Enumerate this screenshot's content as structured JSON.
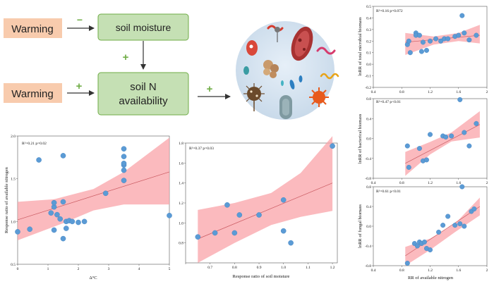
{
  "diagram": {
    "warming_top": "Warming",
    "warming_bottom": "Warming",
    "soil_moisture": "soil moisture",
    "soil_n_line1": "soil N",
    "soil_n_line2": "availability",
    "sign_negative": "−",
    "sign_positive": "+",
    "colors": {
      "warming_box": "#f8cbad",
      "green_box": "#c5e0b4",
      "green_border": "#70ad47",
      "arrow": "#333333",
      "plus": "#70ad47"
    }
  },
  "chart_data": [
    {
      "type": "scatter",
      "stat": "R²=0.21 p=0.02",
      "xlabel": "Δ°C",
      "ylabel": "Response ratio of available nitrogen",
      "xlim": [
        0,
        5
      ],
      "ylim": [
        0.5,
        2.0
      ],
      "xticks": [
        0,
        1,
        2,
        3,
        4,
        5
      ],
      "yticks": [
        0.5,
        1.0,
        1.5,
        2.0
      ],
      "x": [
        0.0,
        0.4,
        0.7,
        1.1,
        1.2,
        1.2,
        1.2,
        1.3,
        1.4,
        1.5,
        1.5,
        1.5,
        1.6,
        1.6,
        1.7,
        1.8,
        2.0,
        2.2,
        2.9,
        3.5,
        3.5,
        3.5,
        3.5,
        3.5,
        3.5,
        5.0
      ],
      "y": [
        0.88,
        0.91,
        1.72,
        1.1,
        1.17,
        1.22,
        0.9,
        1.08,
        1.03,
        1.23,
        0.8,
        1.77,
        0.92,
        1.0,
        1.01,
        1.0,
        0.99,
        1.0,
        1.33,
        1.48,
        1.6,
        1.66,
        1.68,
        1.76,
        1.85,
        1.07
      ],
      "fit": {
        "x0": 0,
        "y0": 1.02,
        "x1": 5,
        "y1": 1.58
      },
      "band": {
        "upper": [
          [
            0,
            1.23
          ],
          [
            1.2,
            1.26
          ],
          [
            2.5,
            1.38
          ],
          [
            3.5,
            1.58
          ],
          [
            5,
            1.98
          ]
        ],
        "lower": [
          [
            0,
            0.78
          ],
          [
            1.5,
            0.98
          ],
          [
            2.5,
            1.13
          ],
          [
            3.5,
            1.2
          ],
          [
            5,
            1.2
          ]
        ]
      }
    },
    {
      "type": "scatter",
      "stat": "R²=0.37 p=0.03",
      "xlabel": "Response ratio of soil moisture",
      "ylabel": "",
      "xlim": [
        0.6,
        1.22
      ],
      "ylim": [
        0.6,
        1.8
      ],
      "xticks": [
        0.6,
        0.7,
        0.8,
        0.9,
        1.0,
        1.1,
        1.2
      ],
      "xtick_labels": [
        "",
        "0.7",
        "0.8",
        "0.9",
        "1.0",
        "1.1",
        "1.2"
      ],
      "yticks": [
        0.8,
        1.0,
        1.2,
        1.4,
        1.6,
        1.8
      ],
      "x": [
        0.65,
        0.72,
        0.77,
        0.8,
        0.82,
        0.9,
        1.0,
        1.0,
        1.03,
        1.2
      ],
      "y": [
        0.86,
        0.9,
        1.18,
        0.9,
        1.08,
        1.08,
        1.23,
        0.92,
        0.8,
        1.77
      ],
      "fit": {
        "x0": 0.65,
        "y0": 0.84,
        "x1": 1.2,
        "y1": 1.4
      },
      "band": {
        "upper": [
          [
            0.65,
            1.13
          ],
          [
            0.8,
            1.2
          ],
          [
            0.95,
            1.3
          ],
          [
            1.07,
            1.5
          ],
          [
            1.2,
            1.87
          ]
        ],
        "lower": [
          [
            0.65,
            0.6
          ],
          [
            0.8,
            0.8
          ],
          [
            0.95,
            0.98
          ],
          [
            1.07,
            1.06
          ],
          [
            1.2,
            1.12
          ]
        ]
      }
    },
    {
      "type": "scatter",
      "stat": "R²=0.16 p=0.072",
      "xlabel": "",
      "ylabel": "lnRR of total microbial biomass",
      "xlim": [
        0.4,
        2.0
      ],
      "ylim": [
        -0.2,
        0.5
      ],
      "xticks": [
        0.4,
        0.8,
        1.2,
        1.6,
        2.0
      ],
      "yticks": [
        -0.2,
        -0.1,
        0.0,
        0.1,
        0.2,
        0.3,
        0.4,
        0.5
      ],
      "x": [
        0.88,
        0.9,
        0.92,
        1.0,
        1.0,
        1.05,
        1.08,
        1.1,
        1.15,
        1.2,
        1.28,
        1.35,
        1.4,
        1.45,
        1.55,
        1.6,
        1.65,
        1.68,
        1.75,
        1.85
      ],
      "y": [
        0.17,
        0.2,
        0.1,
        0.27,
        0.25,
        0.25,
        0.11,
        0.19,
        0.12,
        0.2,
        0.22,
        0.2,
        0.22,
        0.22,
        0.24,
        0.25,
        0.42,
        0.27,
        0.21,
        0.25
      ],
      "fit": {
        "x0": 0.85,
        "y0": 0.19,
        "x1": 1.9,
        "y1": 0.25
      },
      "band": {
        "upper": [
          [
            0.85,
            0.27
          ],
          [
            1.25,
            0.24
          ],
          [
            1.6,
            0.27
          ],
          [
            1.9,
            0.34
          ]
        ],
        "lower": [
          [
            0.85,
            0.08
          ],
          [
            1.25,
            0.17
          ],
          [
            1.6,
            0.2
          ],
          [
            1.9,
            0.18
          ]
        ]
      }
    },
    {
      "type": "scatter",
      "stat": "R²=0.47 p<0.01",
      "xlabel": "",
      "ylabel": "lnRR of bacterical biomass",
      "xlim": [
        0.4,
        2.0
      ],
      "ylim": [
        -0.8,
        0.8
      ],
      "xticks": [
        0.4,
        0.8,
        1.2,
        1.6,
        2.0
      ],
      "yticks": [
        -0.8,
        -0.4,
        0.0,
        0.4,
        0.8
      ],
      "x": [
        0.88,
        0.9,
        1.05,
        1.1,
        1.15,
        1.2,
        1.38,
        1.42,
        1.5,
        1.62,
        1.68,
        1.75,
        1.85
      ],
      "y": [
        -0.15,
        -0.58,
        -0.2,
        -0.45,
        -0.43,
        0.08,
        0.05,
        0.03,
        0.05,
        0.78,
        0.12,
        -0.15,
        0.3
      ],
      "fit": {
        "x0": 0.85,
        "y0": -0.5,
        "x1": 1.9,
        "y1": 0.28
      },
      "band": {
        "upper": [
          [
            0.85,
            -0.27
          ],
          [
            1.2,
            -0.07
          ],
          [
            1.5,
            0.12
          ],
          [
            1.9,
            0.55
          ]
        ],
        "lower": [
          [
            0.85,
            -0.75
          ],
          [
            1.2,
            -0.32
          ],
          [
            1.5,
            -0.06
          ],
          [
            1.9,
            0.02
          ]
        ]
      }
    },
    {
      "type": "scatter",
      "stat": "R²=0.61 p<0.01",
      "xlabel": "RR of available nitrogen",
      "ylabel": "lnRR of fungal biomass",
      "xlim": [
        0.4,
        2.0
      ],
      "ylim": [
        -0.8,
        0.8
      ],
      "xticks": [
        0.4,
        0.8,
        1.2,
        1.6,
        2.0
      ],
      "yticks": [
        -0.8,
        -0.4,
        0.0,
        0.4,
        0.8
      ],
      "x": [
        0.88,
        0.98,
        1.02,
        1.05,
        1.08,
        1.12,
        1.15,
        1.2,
        1.32,
        1.38,
        1.45,
        1.55,
        1.62,
        1.65,
        1.68,
        1.78,
        1.82
      ],
      "y": [
        -0.75,
        -0.35,
        -0.4,
        -0.32,
        -0.35,
        -0.32,
        -0.45,
        -0.48,
        -0.12,
        0.02,
        0.2,
        0.02,
        0.05,
        0.8,
        0.0,
        0.3,
        0.35
      ],
      "fit": {
        "x0": 0.85,
        "y0": -0.6,
        "x1": 1.9,
        "y1": 0.4
      },
      "band": {
        "upper": [
          [
            0.85,
            -0.42
          ],
          [
            1.2,
            -0.25
          ],
          [
            1.55,
            0.05
          ],
          [
            1.9,
            0.58
          ]
        ],
        "lower": [
          [
            0.85,
            -0.8
          ],
          [
            1.2,
            -0.48
          ],
          [
            1.55,
            -0.12
          ],
          [
            1.9,
            0.22
          ]
        ]
      }
    }
  ]
}
